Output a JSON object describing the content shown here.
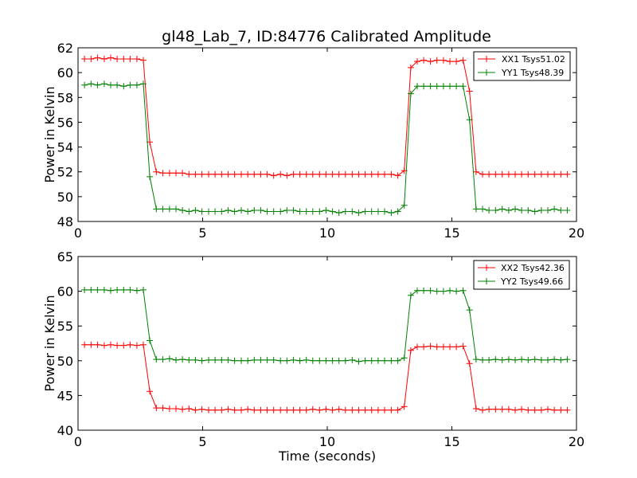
{
  "chart_data": [
    {
      "type": "line",
      "title": "gl48_Lab_7, ID:84776 Calibrated Amplitude",
      "xlabel": "",
      "ylabel": "Power in Kelvin",
      "xlim": [
        0,
        20
      ],
      "ylim": [
        48,
        62
      ],
      "xticks": [
        "0",
        "5",
        "10",
        "15",
        "20"
      ],
      "yticks": [
        "48",
        "50",
        "52",
        "54",
        "56",
        "58",
        "60",
        "62"
      ],
      "legend_position": "top-right",
      "grid": false,
      "x": [
        0.26,
        0.52,
        0.78,
        1.05,
        1.31,
        1.57,
        1.83,
        2.09,
        2.36,
        2.62,
        2.88,
        3.14,
        3.4,
        3.67,
        3.93,
        4.19,
        4.45,
        4.71,
        4.97,
        5.24,
        5.5,
        5.76,
        6.02,
        6.28,
        6.55,
        6.81,
        7.07,
        7.33,
        7.59,
        7.85,
        8.12,
        8.38,
        8.64,
        8.9,
        9.16,
        9.42,
        9.69,
        9.95,
        10.21,
        10.47,
        10.73,
        11.0,
        11.26,
        11.52,
        11.78,
        12.04,
        12.3,
        12.57,
        12.83,
        13.09,
        13.35,
        13.61,
        13.87,
        14.14,
        14.4,
        14.66,
        14.92,
        15.18,
        15.45,
        15.71,
        15.97,
        16.23,
        16.49,
        16.75,
        17.02,
        17.28,
        17.54,
        17.8,
        18.06,
        18.33,
        18.59,
        18.85,
        19.11,
        19.37,
        19.63
      ],
      "series": [
        {
          "name": "XX1 Tsys51.02",
          "color": "#ff0000",
          "values": [
            61.1,
            61.1,
            61.2,
            61.1,
            61.2,
            61.1,
            61.1,
            61.1,
            61.1,
            61.0,
            54.4,
            52.0,
            51.9,
            51.9,
            51.9,
            51.9,
            51.8,
            51.8,
            51.8,
            51.8,
            51.8,
            51.8,
            51.8,
            51.8,
            51.8,
            51.8,
            51.8,
            51.8,
            51.8,
            51.7,
            51.8,
            51.7,
            51.8,
            51.8,
            51.8,
            51.8,
            51.8,
            51.8,
            51.8,
            51.8,
            51.8,
            51.8,
            51.8,
            51.8,
            51.8,
            51.8,
            51.8,
            51.8,
            51.7,
            52.1,
            60.4,
            60.9,
            61.0,
            60.9,
            61.0,
            61.0,
            60.9,
            60.9,
            61.0,
            58.5,
            52.0,
            51.8,
            51.8,
            51.8,
            51.8,
            51.8,
            51.8,
            51.8,
            51.8,
            51.8,
            51.8,
            51.8,
            51.8,
            51.8,
            51.8
          ]
        },
        {
          "name": "YY1 Tsys48.39",
          "color": "#008000",
          "values": [
            59.0,
            59.1,
            59.0,
            59.1,
            59.0,
            59.0,
            58.9,
            59.0,
            59.0,
            59.1,
            51.6,
            49.0,
            49.0,
            49.0,
            49.0,
            48.9,
            48.8,
            48.9,
            48.8,
            48.8,
            48.8,
            48.8,
            48.9,
            48.8,
            48.9,
            48.8,
            48.9,
            48.9,
            48.8,
            48.8,
            48.8,
            48.9,
            48.9,
            48.8,
            48.8,
            48.8,
            48.8,
            48.9,
            48.8,
            48.7,
            48.8,
            48.8,
            48.7,
            48.8,
            48.8,
            48.8,
            48.8,
            48.7,
            48.8,
            49.3,
            58.3,
            58.9,
            58.9,
            58.9,
            58.9,
            58.9,
            58.9,
            58.9,
            58.9,
            56.2,
            49.0,
            49.0,
            48.9,
            48.9,
            49.0,
            48.9,
            49.0,
            48.9,
            48.9,
            48.8,
            48.9,
            48.9,
            49.0,
            48.9,
            48.9
          ]
        }
      ]
    },
    {
      "type": "line",
      "title": "",
      "xlabel": "Time (seconds)",
      "ylabel": "Power in Kelvin",
      "xlim": [
        0,
        20
      ],
      "ylim": [
        40,
        65
      ],
      "xticks": [
        "0",
        "5",
        "10",
        "15",
        "20"
      ],
      "yticks": [
        "40",
        "45",
        "50",
        "55",
        "60",
        "65"
      ],
      "legend_position": "top-right",
      "grid": false,
      "x": [
        0.26,
        0.52,
        0.78,
        1.05,
        1.31,
        1.57,
        1.83,
        2.09,
        2.36,
        2.62,
        2.88,
        3.14,
        3.4,
        3.67,
        3.93,
        4.19,
        4.45,
        4.71,
        4.97,
        5.24,
        5.5,
        5.76,
        6.02,
        6.28,
        6.55,
        6.81,
        7.07,
        7.33,
        7.59,
        7.85,
        8.12,
        8.38,
        8.64,
        8.9,
        9.16,
        9.42,
        9.69,
        9.95,
        10.21,
        10.47,
        10.73,
        11.0,
        11.26,
        11.52,
        11.78,
        12.04,
        12.3,
        12.57,
        12.83,
        13.09,
        13.35,
        13.61,
        13.87,
        14.14,
        14.4,
        14.66,
        14.92,
        15.18,
        15.45,
        15.71,
        15.97,
        16.23,
        16.49,
        16.75,
        17.02,
        17.28,
        17.54,
        17.8,
        18.06,
        18.33,
        18.59,
        18.85,
        19.11,
        19.37,
        19.63
      ],
      "series": [
        {
          "name": "XX2 Tsys42.36",
          "color": "#ff0000",
          "values": [
            52.3,
            52.3,
            52.3,
            52.2,
            52.3,
            52.2,
            52.2,
            52.3,
            52.2,
            52.3,
            45.6,
            43.2,
            43.2,
            43.1,
            43.1,
            43.0,
            43.1,
            42.9,
            43.0,
            42.9,
            42.9,
            42.9,
            43.0,
            42.9,
            42.9,
            43.0,
            42.9,
            42.9,
            42.9,
            42.9,
            42.9,
            42.9,
            42.9,
            42.9,
            42.9,
            43.0,
            42.9,
            43.0,
            42.9,
            43.0,
            42.9,
            42.9,
            42.9,
            42.9,
            42.9,
            42.9,
            42.9,
            42.9,
            42.9,
            43.4,
            51.5,
            52.0,
            52.0,
            52.1,
            52.0,
            52.0,
            52.0,
            52.0,
            52.1,
            49.6,
            43.1,
            42.9,
            43.0,
            43.0,
            43.0,
            43.0,
            42.9,
            43.0,
            42.9,
            42.9,
            42.9,
            43.0,
            42.9,
            42.9,
            42.9
          ]
        },
        {
          "name": "YY2 Tsys49.66",
          "color": "#008000",
          "values": [
            60.2,
            60.2,
            60.2,
            60.2,
            60.1,
            60.2,
            60.2,
            60.2,
            60.1,
            60.2,
            52.9,
            50.2,
            50.2,
            50.3,
            50.1,
            50.2,
            50.1,
            50.1,
            50.0,
            50.1,
            50.1,
            50.1,
            50.1,
            50.0,
            50.0,
            50.0,
            50.1,
            50.1,
            50.1,
            50.1,
            50.0,
            50.0,
            50.1,
            50.0,
            50.1,
            50.0,
            50.0,
            50.0,
            50.0,
            50.0,
            50.0,
            50.1,
            49.9,
            50.0,
            50.0,
            50.0,
            50.0,
            50.0,
            50.0,
            50.4,
            59.4,
            60.1,
            60.1,
            60.1,
            60.0,
            60.0,
            60.1,
            60.0,
            60.1,
            57.3,
            50.2,
            50.1,
            50.1,
            50.2,
            50.1,
            50.2,
            50.1,
            50.2,
            50.1,
            50.2,
            50.1,
            50.1,
            50.2,
            50.1,
            50.2
          ]
        }
      ]
    }
  ]
}
